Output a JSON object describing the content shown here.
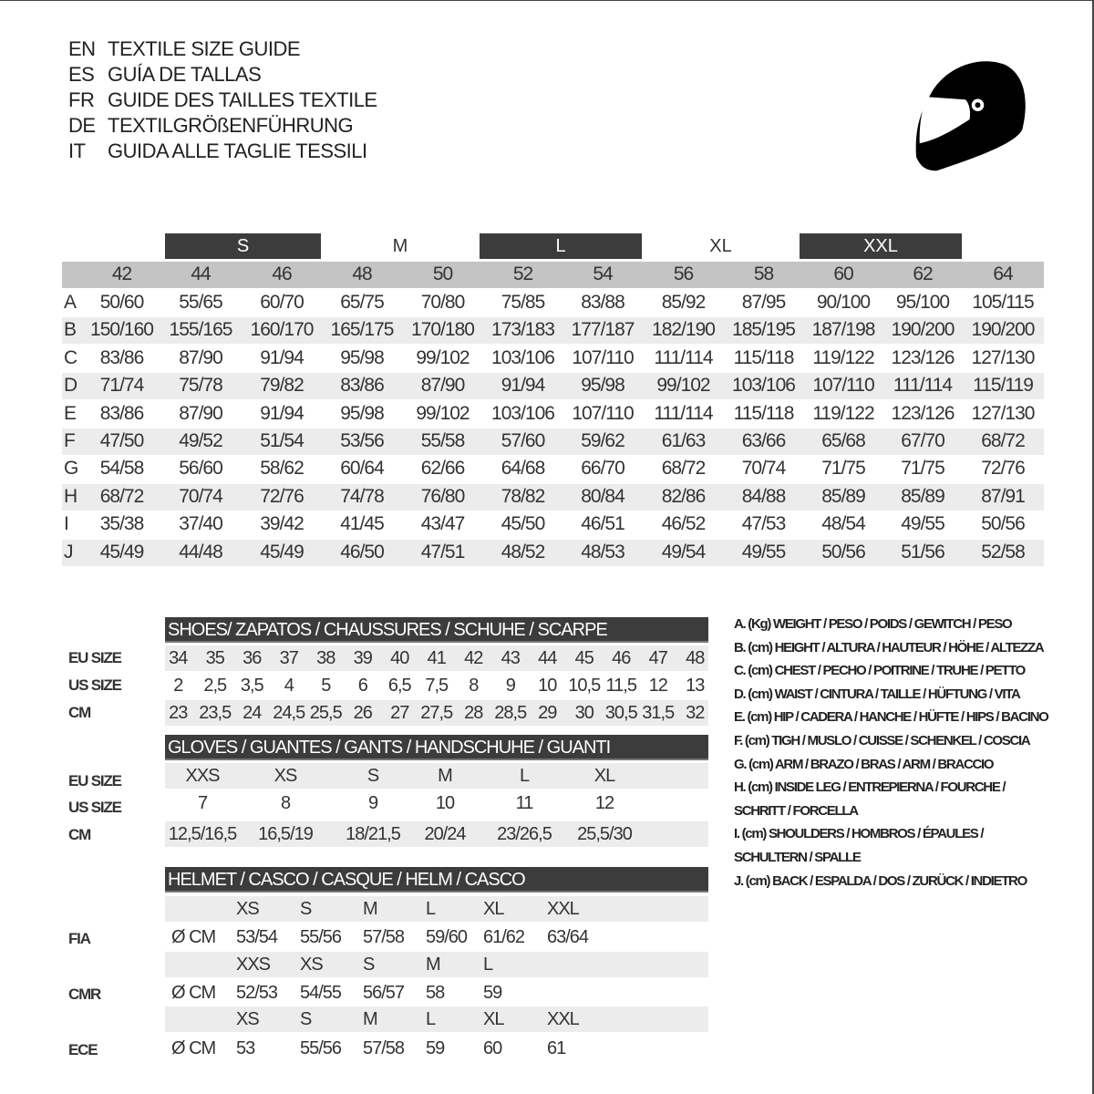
{
  "titles": [
    {
      "code": "EN",
      "text": "TEXTILE SIZE GUIDE"
    },
    {
      "code": "ES",
      "text": "GUÍA DE TALLAS"
    },
    {
      "code": "FR",
      "text": "GUIDE DES TAILLES TEXTILE"
    },
    {
      "code": "DE",
      "text": "TEXTILGRÖßENFÜHRUNG"
    },
    {
      "code": "IT",
      "text": "GUIDA ALLE TAGLIE TESSILI"
    }
  ],
  "logo_icon": "helmet-icon",
  "textile": {
    "size_groups": [
      {
        "label": "S",
        "style": "dark"
      },
      {
        "label": "M",
        "style": "light"
      },
      {
        "label": "L",
        "style": "dark"
      },
      {
        "label": "XL",
        "style": "light"
      },
      {
        "label": "XXL",
        "style": "dark"
      }
    ],
    "eu_sizes": [
      "42",
      "44",
      "46",
      "48",
      "50",
      "52",
      "54",
      "56",
      "58",
      "60",
      "62",
      "64"
    ],
    "rows": [
      {
        "key": "A",
        "values": [
          "50/60",
          "55/65",
          "60/70",
          "65/75",
          "70/80",
          "75/85",
          "83/88",
          "85/92",
          "87/95",
          "90/100",
          "95/100",
          "105/115"
        ]
      },
      {
        "key": "B",
        "values": [
          "150/160",
          "155/165",
          "160/170",
          "165/175",
          "170/180",
          "173/183",
          "177/187",
          "182/190",
          "185/195",
          "187/198",
          "190/200",
          "190/200"
        ]
      },
      {
        "key": "C",
        "values": [
          "83/86",
          "87/90",
          "91/94",
          "95/98",
          "99/102",
          "103/106",
          "107/110",
          "111/114",
          "115/118",
          "119/122",
          "123/126",
          "127/130"
        ]
      },
      {
        "key": "D",
        "values": [
          "71/74",
          "75/78",
          "79/82",
          "83/86",
          "87/90",
          "91/94",
          "95/98",
          "99/102",
          "103/106",
          "107/110",
          "111/114",
          "115/119"
        ]
      },
      {
        "key": "E",
        "values": [
          "83/86",
          "87/90",
          "91/94",
          "95/98",
          "99/102",
          "103/106",
          "107/110",
          "111/114",
          "115/118",
          "119/122",
          "123/126",
          "127/130"
        ]
      },
      {
        "key": "F",
        "values": [
          "47/50",
          "49/52",
          "51/54",
          "53/56",
          "55/58",
          "57/60",
          "59/62",
          "61/63",
          "63/66",
          "65/68",
          "67/70",
          "68/72"
        ]
      },
      {
        "key": "G",
        "values": [
          "54/58",
          "56/60",
          "58/62",
          "60/64",
          "62/66",
          "64/68",
          "66/70",
          "68/72",
          "70/74",
          "71/75",
          "71/75",
          "72/76"
        ]
      },
      {
        "key": "H",
        "values": [
          "68/72",
          "70/74",
          "72/76",
          "74/78",
          "76/80",
          "78/82",
          "80/84",
          "82/86",
          "84/88",
          "85/89",
          "85/89",
          "87/91"
        ]
      },
      {
        "key": "I",
        "values": [
          "35/38",
          "37/40",
          "39/42",
          "41/45",
          "43/47",
          "45/50",
          "46/51",
          "46/52",
          "47/53",
          "48/54",
          "49/55",
          "50/56"
        ]
      },
      {
        "key": "J",
        "values": [
          "45/49",
          "44/48",
          "45/49",
          "46/50",
          "47/51",
          "48/52",
          "48/53",
          "49/54",
          "49/55",
          "50/56",
          "51/56",
          "52/58"
        ]
      }
    ]
  },
  "shoes": {
    "title": "SHOES/ ZAPATOS / CHAUSSURES / SCHUHE / SCARPE",
    "rows": [
      {
        "label": "EU SIZE",
        "values": [
          "34",
          "35",
          "36",
          "37",
          "38",
          "39",
          "40",
          "41",
          "42",
          "43",
          "44",
          "45",
          "46",
          "47",
          "48"
        ]
      },
      {
        "label": "US SIZE",
        "values": [
          "2",
          "2,5",
          "3,5",
          "4",
          "5",
          "6",
          "6,5",
          "7,5",
          "8",
          "9",
          "10",
          "10,5",
          "11,5",
          "12",
          "13"
        ]
      },
      {
        "label": "CM",
        "values": [
          "23",
          "23,5",
          "24",
          "24,5",
          "25,5",
          "26",
          "27",
          "27,5",
          "28",
          "28,5",
          "29",
          "30",
          "30,5",
          "31,5",
          "32"
        ]
      }
    ]
  },
  "gloves": {
    "title": "GLOVES / GUANTES / GANTS / HANDSCHUHE / GUANTI",
    "rows": [
      {
        "label": "EU SIZE",
        "values": [
          "XXS",
          "XS",
          "S",
          "M",
          "L",
          "XL"
        ]
      },
      {
        "label": "US SIZE",
        "values": [
          "7",
          "8",
          "9",
          "10",
          "11",
          "12"
        ]
      },
      {
        "label": "CM",
        "values": [
          "12,5/16,5",
          "16,5/19",
          "18/21,5",
          "20/24",
          "23/26,5",
          "25,5/30"
        ]
      }
    ]
  },
  "helmet": {
    "title": "HELMET / CASCO / CASQUE / HELM / CASCO",
    "unit": "Ø CM",
    "standards": [
      {
        "label": "FIA",
        "sizes": [
          "XS",
          "S",
          "M",
          "L",
          "XL",
          "XXL"
        ],
        "values": [
          "53/54",
          "55/56",
          "57/58",
          "59/60",
          "61/62",
          "63/64"
        ]
      },
      {
        "label": "CMR",
        "sizes": [
          "XXS",
          "XS",
          "S",
          "M",
          "L"
        ],
        "values": [
          "52/53",
          "54/55",
          "56/57",
          "58",
          "59"
        ]
      },
      {
        "label": "ECE",
        "sizes": [
          "XS",
          "S",
          "M",
          "L",
          "XL",
          "XXL"
        ],
        "values": [
          "53",
          "55/56",
          "57/58",
          "59",
          "60",
          "61"
        ]
      }
    ]
  },
  "legend": [
    "A. (Kg) WEIGHT / PESO / POIDS / GEWITCH / PESO",
    "B. (cm) HEIGHT / ALTURA / HAUTEUR / HÖHE / ALTEZZA",
    "C. (cm) CHEST / PECHO / POITRINE / TRUHE / PETTO",
    "D. (cm) WAIST / CINTURA / TAILLE / HÜFTUNG / VITA",
    "E. (cm) HIP / CADERA / HANCHE / HÜFTE / HIPS /  BACINO",
    "F.  (cm) TIGH / MUSLO / CUISSE / SCHENKEL / COSCIA",
    "G. (cm) ARM  / BRAZO / BRAS / ARM / BRACCIO",
    "H. (cm) INSIDE LEG / ENTREPIERNA / FOURCHE /",
    "SCHRITT / FORCELLA",
    "I.  (cm) SHOULDERS / HOMBROS / ÉPAULES /",
    "SCHULTERN / SPALLE",
    "J. (cm) BACK / ESPALDA / DOS / ZURÜCK / INDIETRO"
  ]
}
